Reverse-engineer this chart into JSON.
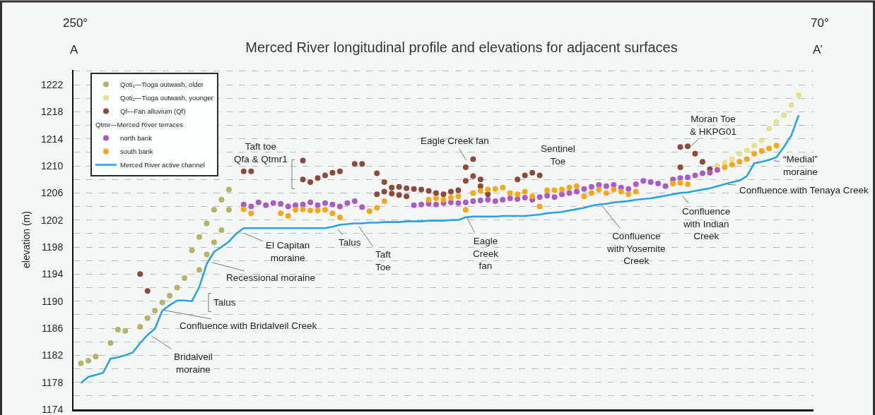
{
  "chart_data": {
    "type": "scatter",
    "title": "Merced River longitudinal profile and elevations for adjacent surfaces",
    "ylabel": "elevation (m)",
    "categories": [
      null,
      null,
      null,
      null,
      null,
      null,
      null,
      null,
      null,
      null,
      null,
      null,
      null,
      null,
      null,
      null,
      null,
      null,
      null,
      null,
      null,
      null,
      null,
      null,
      null,
      null,
      null,
      null,
      null,
      null,
      null,
      null,
      null,
      null,
      null,
      null,
      null,
      null,
      null,
      null,
      null,
      null,
      null,
      null,
      null,
      null,
      null,
      null,
      null,
      null,
      null,
      null,
      null,
      null,
      null,
      null,
      null,
      null,
      null,
      null,
      null,
      null,
      null,
      null,
      null,
      null,
      null,
      null,
      null,
      null,
      null,
      null,
      null,
      null,
      null,
      null,
      null,
      null,
      null,
      null,
      null,
      null,
      null,
      null,
      null,
      null,
      null,
      null,
      null,
      null,
      null,
      null,
      null,
      null,
      null,
      null,
      null,
      null,
      null,
      null,
      null
    ],
    "series": [
      {
        "name": "Qoti₁—Tioga outwash, older",
        "color": "#b4b46a",
        "values": [
          null,
          1180.8,
          1181.2,
          1181.8,
          null,
          1183.8,
          1185.8,
          1185.6,
          null,
          1186.2,
          1187.5,
          1188.6,
          1189.8,
          1190.8,
          1192.0,
          1193.4,
          1197.5,
          1199.5,
          1201.5,
          1203.5,
          1205.0,
          1206.5,
          null,
          null,
          null,
          null,
          null,
          null,
          null,
          null,
          null,
          null,
          null,
          null,
          null,
          null,
          null,
          null,
          null,
          null,
          null,
          null,
          null,
          null,
          null,
          null,
          null,
          null,
          null,
          null,
          null,
          null,
          null,
          null,
          null,
          null,
          null,
          null,
          null,
          null,
          null,
          null,
          null,
          null,
          null,
          null,
          null,
          null,
          null,
          null,
          null,
          null,
          null,
          null,
          null,
          null,
          null,
          null,
          null,
          null,
          null,
          null,
          null,
          null,
          null,
          null,
          null,
          null,
          null,
          null,
          null,
          null,
          null,
          null,
          null,
          null,
          null,
          null,
          null,
          null,
          null
        ]
      },
      {
        "color": "#b4b46a",
        "values": [
          null,
          null,
          null,
          null,
          null,
          null,
          null,
          null,
          null,
          null,
          null,
          null,
          null,
          null,
          null,
          null,
          null,
          1194.6,
          1196.9,
          1198.7,
          1200.5,
          1203.5,
          null,
          null,
          null,
          null,
          null,
          null,
          null,
          null,
          null,
          null,
          null,
          null,
          null,
          null,
          null,
          null,
          null,
          null,
          null,
          null,
          null,
          null,
          null,
          null,
          null,
          null,
          null,
          null,
          null,
          null,
          null,
          null,
          null,
          null,
          null,
          null,
          null,
          null,
          null,
          null,
          null,
          null,
          null,
          null,
          null,
          null,
          null,
          null,
          null,
          null,
          null,
          null,
          null,
          null,
          null,
          null,
          null,
          null,
          null,
          null,
          null,
          null,
          null,
          null,
          null,
          null,
          null,
          null,
          null,
          null,
          null,
          null,
          null,
          null,
          null,
          null,
          null,
          null,
          null
        ]
      },
      {
        "name": "Qoti₂—Tioga outwash, younger",
        "color": "#e3e38e",
        "values": [
          null,
          null,
          null,
          null,
          null,
          null,
          null,
          null,
          null,
          null,
          null,
          null,
          null,
          null,
          null,
          null,
          null,
          null,
          null,
          null,
          null,
          null,
          null,
          null,
          null,
          null,
          null,
          null,
          null,
          null,
          null,
          null,
          null,
          null,
          null,
          null,
          null,
          null,
          null,
          null,
          null,
          null,
          null,
          null,
          null,
          null,
          null,
          null,
          null,
          null,
          null,
          null,
          null,
          null,
          null,
          null,
          null,
          null,
          null,
          null,
          null,
          null,
          null,
          null,
          null,
          null,
          null,
          null,
          null,
          null,
          null,
          null,
          null,
          null,
          null,
          null,
          null,
          null,
          null,
          null,
          null,
          null,
          null,
          null,
          null,
          null,
          null,
          1210.0,
          1210.5,
          1211.0,
          1211.8,
          1212.3,
          1213.0,
          1213.8,
          1215.5,
          1216.5,
          1217.5,
          1219.0,
          1220.5,
          null,
          null
        ]
      },
      {
        "name": "Qf—Fan alluvium (Qf)",
        "color": "#8c4a3b",
        "values": [
          null,
          null,
          null,
          null,
          null,
          null,
          null,
          null,
          null,
          1194.0,
          1191.5,
          null,
          null,
          null,
          null,
          null,
          null,
          null,
          null,
          null,
          null,
          null,
          null,
          1209.2,
          1209.2,
          null,
          null,
          null,
          null,
          null,
          null,
          1210.8,
          1207.6,
          1208.2,
          1208.6,
          1209.0,
          1209.2,
          null,
          1210.3,
          1210.3,
          null,
          1208.9,
          1207.6,
          1206.8,
          1206.9,
          1206.7,
          1206.6,
          1206.5,
          1206.3,
          1206.0,
          1205.8,
          1206.2,
          1206.4,
          1209.8,
          1211.0,
          1208.0,
          1205.8,
          null,
          null,
          null,
          1208.0,
          1208.6,
          1209.0,
          1208.6,
          null,
          null,
          null,
          null,
          null,
          null,
          null,
          null,
          null,
          null,
          null,
          null,
          null,
          null,
          null,
          null,
          null,
          null,
          1209.8,
          1212.9,
          1211.8,
          1210.6,
          1209.5,
          null,
          null,
          null,
          null,
          null,
          null,
          null,
          null,
          null,
          null,
          null,
          null,
          null,
          null
        ]
      },
      {
        "color": "#8c4a3b",
        "values": [
          null,
          null,
          null,
          null,
          null,
          null,
          null,
          null,
          null,
          null,
          null,
          null,
          null,
          null,
          null,
          null,
          null,
          null,
          null,
          null,
          null,
          null,
          null,
          null,
          null,
          null,
          null,
          null,
          null,
          null,
          null,
          1208.0,
          null,
          null,
          null,
          null,
          null,
          null,
          null,
          null,
          null,
          1205.8,
          1206.2,
          1205.9,
          1205.7,
          1205.5,
          null,
          null,
          null,
          null,
          null,
          null,
          null,
          1207.8,
          1208.5,
          1207.0,
          null,
          null,
          null,
          null,
          null,
          null,
          null,
          null,
          null,
          null,
          null,
          null,
          null,
          null,
          null,
          null,
          null,
          null,
          null,
          null,
          null,
          null,
          null,
          null,
          null,
          null,
          1212.8,
          null,
          null,
          null,
          null,
          null,
          null,
          null,
          null,
          null,
          null,
          null,
          null,
          null,
          null,
          null,
          null,
          null,
          null
        ]
      },
      {
        "name": "north bank",
        "color": "#a95bc6",
        "values": [
          null,
          null,
          null,
          null,
          null,
          null,
          null,
          null,
          null,
          null,
          null,
          null,
          null,
          null,
          null,
          null,
          null,
          null,
          null,
          null,
          null,
          null,
          null,
          1204.3,
          1204.0,
          1204.6,
          1204.2,
          1204.5,
          1204.4,
          1204.0,
          1204.2,
          1204.3,
          1204.6,
          1204.2,
          1204.5,
          1204.3,
          1204.0,
          1204.5,
          1204.8,
          1203.9,
          null,
          null,
          null,
          null,
          null,
          null,
          1204.2,
          1204.3,
          1204.4,
          1204.3,
          1204.5,
          1204.6,
          1204.5,
          1204.6,
          1204.8,
          1204.9,
          1205.0,
          1204.8,
          1205.0,
          1205.2,
          1205.1,
          1205.3,
          1205.0,
          1205.4,
          1205.6,
          1205.4,
          1205.8,
          1206.0,
          1206.2,
          1206.6,
          1206.9,
          1207.2,
          1207.0,
          1207.2,
          1206.8,
          1206.6,
          1207.3,
          1207.8,
          1207.6,
          1207.4,
          1207.0,
          1208.0,
          1208.2,
          1208.3,
          1208.6,
          1208.9,
          1209.0,
          1209.4,
          null,
          null,
          null,
          null,
          null,
          null,
          null,
          null,
          null,
          null,
          null,
          null,
          null
        ]
      },
      {
        "name": "south bank",
        "color": "#f4a81e",
        "values": [
          null,
          null,
          null,
          null,
          null,
          null,
          null,
          null,
          null,
          null,
          null,
          null,
          null,
          null,
          null,
          null,
          null,
          null,
          null,
          null,
          null,
          null,
          null,
          1203.6,
          1203.0,
          null,
          null,
          null,
          1203.0,
          1202.6,
          1203.5,
          1203.6,
          1203.4,
          1203.4,
          1203.5,
          1203.0,
          1202.4,
          null,
          null,
          null,
          1203.3,
          1203.8,
          1204.8,
          null,
          null,
          null,
          null,
          null,
          1205.0,
          1205.2,
          1205.0,
          1205.3,
          1205.5,
          1203.5,
          1206.0,
          1206.3,
          1206.5,
          1206.6,
          1206.8,
          1206.0,
          1205.8,
          1206.2,
          1205.5,
          1204.0,
          1206.4,
          1206.4,
          1206.5,
          1206.8,
          1207.0,
          1205.5,
          1206.0,
          1206.5,
          1206.0,
          1206.5,
          1206.2,
          1205.8,
          1206.2,
          null,
          null,
          null,
          null,
          1207.4,
          1207.5,
          1207.3,
          null,
          null,
          null,
          null,
          1209.8,
          1210.2,
          1210.6,
          1211.0,
          1211.8,
          1212.2,
          1212.6,
          1213.0,
          null,
          null,
          null,
          null,
          null
        ]
      },
      {
        "name": "Merced River active channel",
        "type": "line",
        "marker": "none",
        "color": "#2ba4de",
        "values": [
          null,
          1177.9,
          1178.8,
          1179.1,
          1179.4,
          1181.5,
          1181.7,
          1182.0,
          1182.4,
          1183.8,
          1185.0,
          1185.9,
          1188.6,
          1189.4,
          1190.1,
          1190.1,
          1190.0,
          1192.1,
          1195.5,
          1197.3,
          1198.0,
          1198.8,
          1200.0,
          1200.8,
          1200.8,
          1200.8,
          1200.8,
          1200.8,
          1200.8,
          1200.8,
          1200.8,
          1200.8,
          1200.8,
          1200.8,
          1200.8,
          1201.0,
          1201.3,
          1201.4,
          1201.5,
          1201.5,
          1201.6,
          1201.6,
          1201.7,
          1201.7,
          1201.7,
          1201.8,
          1201.8,
          1201.8,
          1201.9,
          1201.9,
          1201.9,
          1202.0,
          1202.0,
          1202.4,
          1202.5,
          1202.5,
          1202.5,
          1202.5,
          1202.6,
          1202.6,
          1202.6,
          1202.6,
          1202.7,
          1202.8,
          1203.0,
          1203.1,
          1203.2,
          1203.4,
          1203.6,
          1203.8,
          1204.1,
          1204.3,
          1204.4,
          1204.6,
          1204.7,
          1204.8,
          1205.0,
          1205.1,
          1205.2,
          1205.4,
          1205.6,
          1205.8,
          1206.0,
          1206.1,
          1206.3,
          1206.5,
          1206.7,
          1207.0,
          1207.3,
          1207.6,
          1207.8,
          1208.5,
          1210.4,
          1210.6,
          1210.9,
          1211.3,
          1212.8,
          1214.5,
          1217.5,
          null,
          null
        ]
      }
    ],
    "ylim": [
      1174,
      1224.2
    ],
    "yticks": [
      1174,
      {
        "value": 1176,
        "label": null
      },
      1178,
      {
        "value": 1180,
        "label": null
      },
      1182,
      {
        "value": 1184,
        "label": null
      },
      1186,
      {
        "value": 1188,
        "label": null
      },
      1190,
      {
        "value": 1192,
        "label": null
      },
      1194,
      {
        "value": 1196,
        "label": null
      },
      1198,
      {
        "value": 1200,
        "label": null
      },
      1202,
      {
        "value": 1204,
        "label": null
      },
      1206,
      {
        "value": 1208,
        "label": null
      },
      1210,
      {
        "value": 1212,
        "label": null
      },
      1214,
      {
        "value": 1216,
        "label": null
      },
      1218,
      {
        "value": 1220,
        "label": null
      },
      1222,
      {
        "value": 1224,
        "label": null
      }
    ],
    "grid": "y",
    "legend": "top left",
    "marker": "circle",
    "annotations": [
      "250°",
      "70°",
      "A",
      "A’",
      "Qtmr—Merced River terraces",
      "Taft toe\nQfa & Qtmr1",
      "Eagle Creek fan",
      "Sentinel\nToe",
      "Moran Toe\n& HKPG01",
      "“Medial”\nmoraine",
      "Confluence with Tenaya Creek",
      "Confluence\nwith Indian\nCreek",
      "Confluence\nwith Yosemite\nCreek",
      "Eagle\nCreek\nfan",
      "Taft\nToe",
      "Talus",
      "El Capitan\nmoraine",
      "Recessional moraine",
      "Talus",
      "Confluence with Bridalveil Creek",
      "Bridalveil\nmoraine"
    ]
  }
}
